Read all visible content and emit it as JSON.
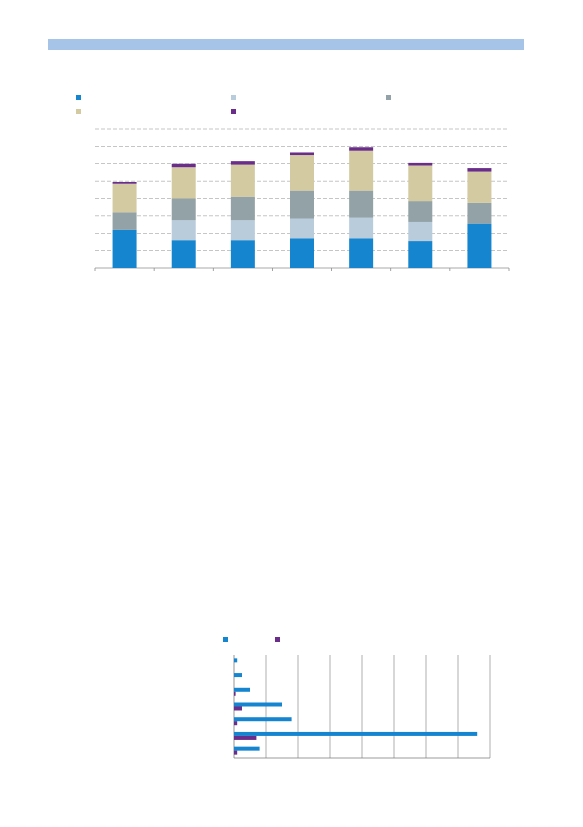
{
  "colors": {
    "header": "#a6c3e8",
    "blue": "#1585cf",
    "lightblue": "#b9ccdc",
    "gray": "#93a2a6",
    "tan": "#d3caa2",
    "purple": "#6a2d8a",
    "grid": "#8c8c8c"
  },
  "chart_data": [
    {
      "type": "bar",
      "stacked": true,
      "orientation": "vertical",
      "title": "",
      "categories": [
        "",
        "",
        "",
        "",
        "",
        "",
        ""
      ],
      "series": [
        {
          "color": "#1585cf",
          "values": [
            2.2,
            1.6,
            1.6,
            1.7,
            1.7,
            1.55,
            2.55
          ]
        },
        {
          "color": "#b9ccdc",
          "values": [
            0.0,
            1.15,
            1.15,
            1.15,
            1.2,
            1.1,
            0.0
          ]
        },
        {
          "color": "#93a2a6",
          "values": [
            1.0,
            1.25,
            1.35,
            1.6,
            1.55,
            1.2,
            1.2
          ]
        },
        {
          "color": "#d3caa2",
          "values": [
            1.65,
            1.8,
            1.85,
            2.05,
            2.3,
            2.05,
            1.8
          ]
        },
        {
          "color": "#6a2d8a",
          "values": [
            0.1,
            0.2,
            0.2,
            0.15,
            0.2,
            0.15,
            0.2
          ]
        }
      ],
      "ylim": [
        0,
        8
      ],
      "grid": true,
      "legend": "top"
    },
    {
      "type": "bar",
      "orientation": "horizontal",
      "title": "",
      "categories": [
        "",
        "",
        "",
        "",
        "",
        "",
        ""
      ],
      "series": [
        {
          "color": "#1585cf",
          "values": [
            0.1,
            0.25,
            0.5,
            1.5,
            1.8,
            7.6,
            0.8
          ]
        },
        {
          "color": "#6a2d8a",
          "values": [
            0.0,
            0.0,
            0.05,
            0.25,
            0.1,
            0.7,
            0.1
          ]
        }
      ],
      "xlim": [
        0,
        8
      ],
      "grid": true,
      "legend": "top"
    }
  ]
}
